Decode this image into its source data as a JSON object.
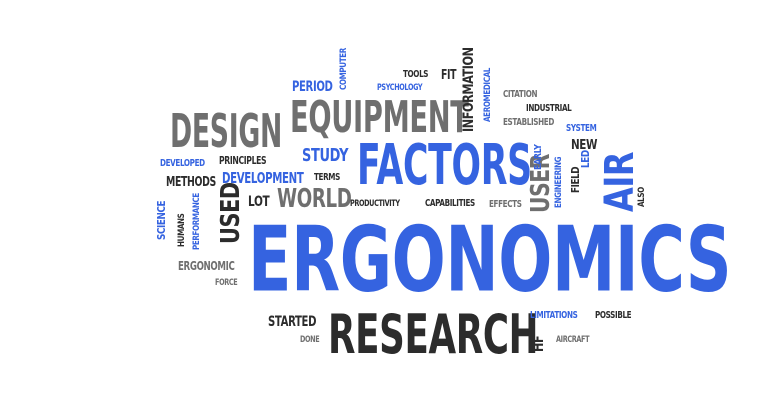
{
  "colors": {
    "blue": "#3563e0",
    "dark": "#2c2c2c",
    "gray": "#6f6f6f",
    "background": "#ffffff"
  },
  "words": [
    {
      "id": "ergonomics",
      "text": "ERGONOMICS"
    },
    {
      "id": "research",
      "text": "RESEARCH"
    },
    {
      "id": "factors",
      "text": "FACTORS"
    },
    {
      "id": "equipment",
      "text": "EQUIPMENT"
    },
    {
      "id": "design",
      "text": "DESIGN"
    },
    {
      "id": "air",
      "text": "AIR"
    },
    {
      "id": "used",
      "text": "USED"
    },
    {
      "id": "world",
      "text": "WORLD"
    },
    {
      "id": "user",
      "text": "USER"
    },
    {
      "id": "study",
      "text": "STUDY"
    },
    {
      "id": "development",
      "text": "DEVELOPMENT"
    },
    {
      "id": "methods",
      "text": "METHODS"
    },
    {
      "id": "principles",
      "text": "PRINCIPLES"
    },
    {
      "id": "developed",
      "text": "DEVELOPED"
    },
    {
      "id": "terms",
      "text": "TERMS"
    },
    {
      "id": "lot",
      "text": "LOT"
    },
    {
      "id": "productivity",
      "text": "PRODUCTIVITY"
    },
    {
      "id": "capabilities",
      "text": "CAPABILITIES"
    },
    {
      "id": "effects",
      "text": "EFFECTS"
    },
    {
      "id": "period",
      "text": "PERIOD"
    },
    {
      "id": "computer",
      "text": "COMPUTER"
    },
    {
      "id": "psychology",
      "text": "PSYCHOLOGY"
    },
    {
      "id": "tools",
      "text": "TOOLS"
    },
    {
      "id": "fit",
      "text": "FIT"
    },
    {
      "id": "information",
      "text": "INFORMATION"
    },
    {
      "id": "aeromedical",
      "text": "AEROMEDICAL"
    },
    {
      "id": "citation",
      "text": "CITATION"
    },
    {
      "id": "industrial",
      "text": "INDUSTRIAL"
    },
    {
      "id": "established",
      "text": "ESTABLISHED"
    },
    {
      "id": "system",
      "text": "SYSTEM"
    },
    {
      "id": "new",
      "text": "NEW"
    },
    {
      "id": "early",
      "text": "EARLY"
    },
    {
      "id": "engineering",
      "text": "ENGINEERING"
    },
    {
      "id": "field",
      "text": "FIELD"
    },
    {
      "id": "led",
      "text": "LED"
    },
    {
      "id": "also",
      "text": "ALSO"
    },
    {
      "id": "science",
      "text": "SCIENCE"
    },
    {
      "id": "humans",
      "text": "HUMANS"
    },
    {
      "id": "performance",
      "text": "PERFORMANCE"
    },
    {
      "id": "ergonomic",
      "text": "ERGONOMIC"
    },
    {
      "id": "force",
      "text": "FORCE"
    },
    {
      "id": "started",
      "text": "STARTED"
    },
    {
      "id": "done",
      "text": "DONE"
    },
    {
      "id": "hf",
      "text": "HF"
    },
    {
      "id": "limitations",
      "text": "LIMITATIONS"
    },
    {
      "id": "possible",
      "text": "POSSIBLE"
    },
    {
      "id": "aircraft",
      "text": "AIRCRAFT"
    }
  ]
}
